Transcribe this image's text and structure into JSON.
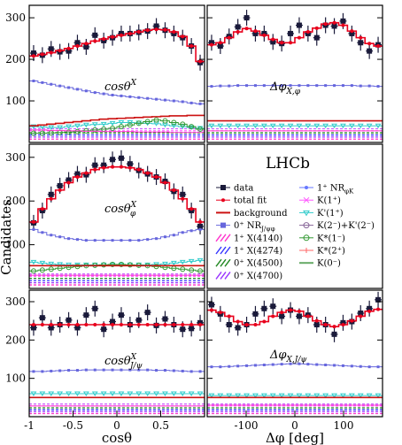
{
  "ylabel": "Candidates",
  "experiment_label": "LHCb",
  "colors": {
    "data": "#1a1a3a",
    "total_fit": "#e8001c",
    "background": "#cc1111",
    "nr_jpsiphi": "#6666dd",
    "x4140": "#ff33cc",
    "x4274": "#3333ff",
    "x4500": "#228822",
    "x4700": "#9933ff",
    "nr_phik": "#6677ff",
    "k1plus": "#ff55ff",
    "kprime1plus": "#33cccc",
    "k2minus": "#886699",
    "kstar1minus": "#339933",
    "kstar2plus": "#ff6666",
    "k0minus": "#66aa66"
  },
  "legend": {
    "left": [
      {
        "key": "data",
        "label": "data",
        "icon": "square-marker-icon"
      },
      {
        "key": "total_fit",
        "label": "total fit",
        "icon": "line-dot-icon"
      },
      {
        "key": "background",
        "label": "background",
        "icon": "line-icon"
      },
      {
        "key": "nr_jpsiphi",
        "label": "0⁺ NR",
        "sub": "J/ψφ",
        "icon": "square-marker-icon"
      },
      {
        "key": "x4140",
        "label": "1⁺ X(4140)",
        "icon": "hatched-band-icon"
      },
      {
        "key": "x4274",
        "label": "1⁺ X(4274)",
        "icon": "hatched-band-icon"
      },
      {
        "key": "x4500",
        "label": "0⁺ X(4500)",
        "icon": "hatched-band-icon"
      },
      {
        "key": "x4700",
        "label": "0⁺ X(4700)",
        "icon": "hatched-band-icon"
      }
    ],
    "right": [
      {
        "key": "nr_phik",
        "label": "1⁺ NR",
        "sub": "φK",
        "icon": "line-dot-icon"
      },
      {
        "key": "k1plus",
        "label": "K(1⁺)",
        "icon": "line-cross-icon"
      },
      {
        "key": "kprime1plus",
        "label": "K'(1⁺)",
        "icon": "line-triangle-icon"
      },
      {
        "key": "k2minus",
        "label": "K(2⁻)+K'(2⁻)",
        "icon": "line-circle-icon"
      },
      {
        "key": "kstar1minus",
        "label": "K*(1⁻)",
        "icon": "line-circle-icon"
      },
      {
        "key": "kstar2plus",
        "label": "K*(2⁺)",
        "icon": "line-star-icon"
      },
      {
        "key": "k0minus",
        "label": "K(0⁻)",
        "icon": "line-icon"
      }
    ]
  },
  "chart_data": [
    {
      "type": "scatter",
      "panel_label": "cosθ",
      "panel_sup": "X",
      "panel_sub": "",
      "xlim": [
        -1,
        1
      ],
      "ylim": [
        0,
        330
      ],
      "x": [
        -0.95,
        -0.85,
        -0.75,
        -0.65,
        -0.55,
        -0.45,
        -0.35,
        -0.25,
        -0.15,
        -0.05,
        0.05,
        0.15,
        0.25,
        0.35,
        0.45,
        0.55,
        0.65,
        0.75,
        0.85,
        0.95
      ],
      "series": [
        {
          "name": "data",
          "values": [
            215,
            210,
            225,
            218,
            220,
            240,
            230,
            258,
            245,
            252,
            262,
            262,
            265,
            268,
            280,
            270,
            262,
            252,
            232,
            192
          ]
        },
        {
          "name": "total fit",
          "values": [
            208,
            212,
            216,
            221,
            226,
            232,
            238,
            244,
            249,
            254,
            258,
            262,
            266,
            270,
            272,
            271,
            266,
            255,
            232,
            195
          ]
        },
        {
          "name": "0⁺ NR J/ψφ",
          "values": [
            148,
            144,
            140,
            136,
            132,
            128,
            124,
            120,
            117,
            114,
            112,
            110,
            108,
            106,
            104,
            102,
            100,
            98,
            95,
            93
          ]
        },
        {
          "name": "K'(1⁺)",
          "values": [
            38,
            37,
            36,
            36,
            38,
            40,
            42,
            43,
            44,
            46,
            48,
            48,
            47,
            46,
            45,
            42,
            40,
            38,
            36,
            34
          ]
        },
        {
          "name": "K*(1⁻)",
          "values": [
            22,
            22,
            23,
            24,
            25,
            26,
            28,
            30,
            32,
            34,
            38,
            42,
            46,
            50,
            54,
            52,
            48,
            44,
            38,
            32
          ]
        },
        {
          "name": "background",
          "values": [
            40,
            42,
            44,
            46,
            48,
            50,
            52,
            54,
            56,
            57,
            58,
            59,
            60,
            61,
            62,
            63,
            64,
            64,
            65,
            65
          ]
        },
        {
          "name": "components",
          "values": [
            30,
            30,
            29,
            29,
            28,
            28,
            27,
            27,
            26,
            26,
            26,
            26,
            25,
            25,
            25,
            25,
            24,
            24,
            24,
            24
          ]
        }
      ]
    },
    {
      "type": "scatter",
      "panel_label": "Δφ",
      "panel_sup": "",
      "panel_sub": "X,φ",
      "xlim": [
        -180,
        180
      ],
      "ylim": [
        0,
        330
      ],
      "x": [
        -171,
        -153,
        -135,
        -117,
        -99,
        -81,
        -63,
        -45,
        -27,
        -9,
        9,
        27,
        45,
        63,
        81,
        99,
        117,
        135,
        153,
        171
      ],
      "series": [
        {
          "name": "data",
          "values": [
            240,
            232,
            255,
            278,
            300,
            262,
            262,
            242,
            238,
            262,
            282,
            262,
            252,
            282,
            280,
            292,
            262,
            240,
            220,
            235
          ]
        },
        {
          "name": "total fit",
          "values": [
            235,
            240,
            252,
            266,
            274,
            268,
            258,
            248,
            240,
            240,
            252,
            266,
            275,
            285,
            288,
            282,
            268,
            252,
            238,
            232
          ]
        },
        {
          "name": "0⁺ NR J/ψφ",
          "values": [
            135,
            136,
            136,
            137,
            137,
            137,
            137,
            137,
            137,
            137,
            137,
            137,
            137,
            137,
            137,
            137,
            137,
            136,
            136,
            135
          ]
        },
        {
          "name": "K'(1⁺)",
          "values": [
            40,
            40,
            40,
            40,
            40,
            40,
            40,
            40,
            40,
            40,
            40,
            40,
            40,
            40,
            40,
            40,
            40,
            40,
            40,
            40
          ]
        },
        {
          "name": "background",
          "values": [
            52,
            52,
            52,
            52,
            52,
            52,
            52,
            52,
            52,
            52,
            52,
            52,
            52,
            52,
            52,
            52,
            52,
            52,
            52,
            52
          ]
        },
        {
          "name": "components",
          "values": [
            28,
            28,
            28,
            28,
            28,
            28,
            28,
            28,
            28,
            28,
            28,
            28,
            28,
            28,
            28,
            28,
            28,
            28,
            28,
            28
          ]
        }
      ]
    },
    {
      "type": "scatter",
      "panel_label": "cosθ",
      "panel_sup": "X",
      "panel_sub": "φ",
      "xlim": [
        -1,
        1
      ],
      "ylim": [
        0,
        330
      ],
      "x": [
        -0.95,
        -0.85,
        -0.75,
        -0.65,
        -0.55,
        -0.45,
        -0.35,
        -0.25,
        -0.15,
        -0.05,
        0.05,
        0.15,
        0.25,
        0.35,
        0.45,
        0.55,
        0.65,
        0.75,
        0.85,
        0.95
      ],
      "series": [
        {
          "name": "data",
          "values": [
            150,
            178,
            215,
            235,
            248,
            262,
            260,
            282,
            282,
            295,
            298,
            285,
            270,
            262,
            255,
            245,
            222,
            215,
            178,
            142
          ]
        },
        {
          "name": "total fit",
          "values": [
            152,
            182,
            205,
            225,
            242,
            255,
            264,
            272,
            276,
            278,
            278,
            276,
            272,
            264,
            255,
            242,
            225,
            205,
            182,
            152
          ]
        },
        {
          "name": "0⁺ NR J/ψφ",
          "values": [
            135,
            128,
            122,
            118,
            114,
            112,
            110,
            110,
            110,
            110,
            110,
            110,
            110,
            112,
            114,
            118,
            122,
            128,
            132,
            135
          ]
        },
        {
          "name": "K'(1⁺)",
          "values": [
            60,
            58,
            56,
            55,
            54,
            54,
            54,
            54,
            54,
            54,
            54,
            54,
            54,
            54,
            55,
            56,
            58,
            60,
            62,
            64
          ]
        },
        {
          "name": "K*(1⁻)",
          "values": [
            40,
            42,
            44,
            46,
            48,
            50,
            52,
            53,
            54,
            55,
            55,
            54,
            53,
            52,
            50,
            48,
            46,
            44,
            42,
            40
          ]
        },
        {
          "name": "background",
          "values": [
            52,
            52,
            52,
            52,
            52,
            52,
            52,
            52,
            52,
            52,
            52,
            52,
            52,
            52,
            52,
            52,
            52,
            52,
            52,
            52
          ]
        },
        {
          "name": "components",
          "values": [
            30,
            30,
            30,
            30,
            30,
            30,
            30,
            30,
            30,
            30,
            30,
            30,
            30,
            30,
            30,
            30,
            30,
            30,
            30,
            30
          ]
        }
      ]
    },
    {
      "type": "scatter",
      "panel_label": "cosθ",
      "panel_sup": "X",
      "panel_sub": "J/ψ",
      "xlim": [
        -1,
        1
      ],
      "ylim": [
        0,
        330
      ],
      "x": [
        -0.95,
        -0.85,
        -0.75,
        -0.65,
        -0.55,
        -0.45,
        -0.35,
        -0.25,
        -0.15,
        -0.05,
        0.05,
        0.15,
        0.25,
        0.35,
        0.45,
        0.55,
        0.65,
        0.75,
        0.85,
        0.95
      ],
      "series": [
        {
          "name": "data",
          "values": [
            232,
            258,
            232,
            240,
            252,
            232,
            265,
            282,
            228,
            248,
            265,
            240,
            252,
            272,
            238,
            255,
            240,
            228,
            230,
            245
          ]
        },
        {
          "name": "total fit",
          "values": [
            240,
            240,
            240,
            240,
            240,
            240,
            240,
            240,
            240,
            240,
            240,
            240,
            240,
            240,
            240,
            240,
            240,
            240,
            240,
            240
          ]
        },
        {
          "name": "0⁺ NR J/ψφ",
          "values": [
            118,
            118,
            119,
            120,
            121,
            121,
            122,
            122,
            122,
            122,
            122,
            122,
            122,
            122,
            121,
            121,
            120,
            119,
            118,
            118
          ]
        },
        {
          "name": "K'(1⁺)",
          "values": [
            60,
            60,
            60,
            60,
            60,
            60,
            60,
            60,
            60,
            60,
            60,
            60,
            60,
            60,
            60,
            60,
            60,
            60,
            60,
            60
          ]
        },
        {
          "name": "background",
          "values": [
            50,
            50,
            50,
            50,
            50,
            50,
            50,
            50,
            50,
            50,
            50,
            50,
            50,
            50,
            50,
            50,
            50,
            50,
            50,
            50
          ]
        },
        {
          "name": "components",
          "values": [
            28,
            28,
            28,
            28,
            28,
            28,
            28,
            28,
            28,
            28,
            28,
            28,
            28,
            28,
            28,
            28,
            28,
            28,
            28,
            28
          ]
        }
      ]
    },
    {
      "type": "scatter",
      "panel_label": "Δφ",
      "panel_sup": "",
      "panel_sub": "X,J/ψ",
      "xlim": [
        -180,
        180
      ],
      "ylim": [
        0,
        330
      ],
      "x": [
        -171,
        -153,
        -135,
        -117,
        -99,
        -81,
        -63,
        -45,
        -27,
        -9,
        9,
        27,
        45,
        63,
        81,
        99,
        117,
        135,
        153,
        171
      ],
      "series": [
        {
          "name": "data",
          "values": [
            292,
            268,
            240,
            232,
            240,
            268,
            282,
            288,
            262,
            278,
            262,
            265,
            240,
            240,
            215,
            245,
            248,
            270,
            282,
            305
          ]
        },
        {
          "name": "total fit",
          "values": [
            278,
            272,
            262,
            248,
            240,
            240,
            248,
            262,
            272,
            278,
            275,
            262,
            250,
            240,
            235,
            240,
            250,
            262,
            275,
            280
          ]
        },
        {
          "name": "0⁺ NR J/ψφ",
          "values": [
            130,
            130,
            131,
            132,
            133,
            134,
            135,
            136,
            137,
            138,
            138,
            137,
            136,
            135,
            134,
            133,
            132,
            131,
            130,
            130
          ]
        },
        {
          "name": "K'(1⁺)",
          "values": [
            55,
            55,
            55,
            55,
            55,
            55,
            55,
            55,
            55,
            55,
            55,
            55,
            55,
            55,
            55,
            55,
            55,
            55,
            55,
            55
          ]
        },
        {
          "name": "background",
          "values": [
            50,
            50,
            50,
            50,
            50,
            50,
            50,
            50,
            50,
            50,
            50,
            50,
            50,
            50,
            50,
            50,
            50,
            50,
            50,
            50
          ]
        },
        {
          "name": "components",
          "values": [
            30,
            30,
            30,
            30,
            30,
            30,
            30,
            30,
            30,
            30,
            30,
            30,
            30,
            30,
            30,
            30,
            30,
            30,
            30,
            30
          ]
        }
      ]
    }
  ],
  "bottom_axes": [
    {
      "xlabel": "cosθ",
      "ticks": [
        "-1",
        "-0.5",
        "0",
        "0.5"
      ]
    },
    {
      "xlabel": "Δφ [deg]",
      "ticks": [
        "-100",
        "0",
        "100"
      ]
    }
  ],
  "y_ticks": [
    "100",
    "200",
    "300"
  ]
}
